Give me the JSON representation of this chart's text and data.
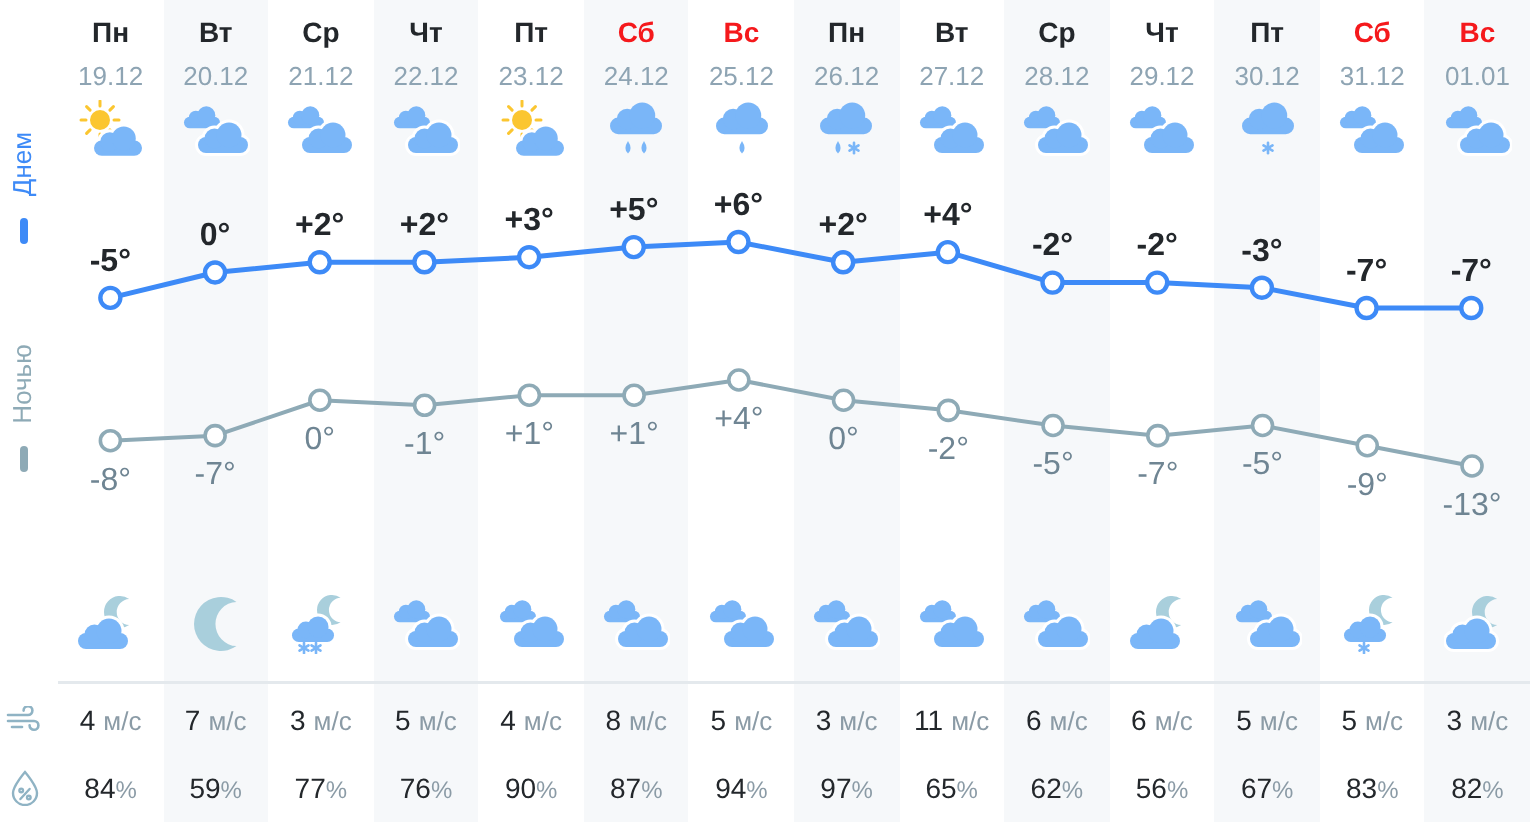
{
  "chart_data": [
    {
      "type": "line",
      "tick_labels": "x",
      "legend": "left",
      "marker": "circle",
      "categories": [
        "Пн\n19.12",
        "Вт\n20.12",
        "Ср\n21.12",
        "Чт\n22.12",
        "Пт\n23.12",
        "Сб\n24.12",
        "Вс\n25.12",
        "Пн\n26.12",
        "Вт\n27.12",
        "Ср\n28.12",
        "Чт\n29.12",
        "Пт\n30.12",
        "Сб\n31.12",
        "Вс\n01.01"
      ],
      "series": [
        {
          "name": "Днем",
          "color": "#3d8af7",
          "values": [
            -5,
            0,
            2,
            2,
            3,
            5,
            6,
            2,
            4,
            -2,
            -2,
            -3,
            -7,
            -7
          ],
          "value_labels": [
            "-5°",
            "0°",
            "+2°",
            "+2°",
            "+3°",
            "+5°",
            "+6°",
            "+2°",
            "+4°",
            "-2°",
            "-2°",
            "-3°",
            "-7°",
            "-7°"
          ]
        }
      ]
    },
    {
      "type": "line",
      "tick_labels": false,
      "legend": "left",
      "marker": "circle",
      "categories": [
        null,
        null,
        null,
        null,
        null,
        null,
        null,
        null,
        null,
        null,
        null,
        null,
        null,
        null
      ],
      "series": [
        {
          "name": "Ночью",
          "color": "#8eaab6",
          "values": [
            -8,
            -7,
            0,
            -1,
            1,
            1,
            4,
            0,
            -2,
            -5,
            -7,
            -5,
            -9,
            -13
          ],
          "value_labels": [
            "-8°",
            "-7°",
            "0°",
            "-1°",
            "+1°",
            "+1°",
            "+4°",
            "0°",
            "-2°",
            "-5°",
            "-7°",
            "-5°",
            "-9°",
            "-13°"
          ]
        }
      ]
    },
    {
      "type": "other",
      "values": [
        4,
        7,
        3,
        5,
        4,
        8,
        5,
        3,
        11,
        6,
        6,
        5,
        5,
        3
      ],
      "value_labels": [
        "4 м/с",
        "7 м/с",
        "3 м/с",
        "5 м/с",
        "4 м/с",
        "8 м/с",
        "5 м/с",
        "3 м/с",
        "11 м/с",
        "6 м/с",
        "6 м/с",
        "5 м/с",
        "5 м/с",
        "3 м/с"
      ]
    },
    {
      "type": "other",
      "values": [
        84,
        59,
        77,
        76,
        90,
        87,
        94,
        97,
        65,
        62,
        56,
        67,
        83,
        82
      ],
      "value_labels": [
        "84%",
        "59%",
        "77%",
        "76%",
        "90%",
        "87%",
        "94%",
        "97%",
        "65%",
        "62%",
        "56%",
        "67%",
        "83%",
        "82%"
      ]
    }
  ]
}
